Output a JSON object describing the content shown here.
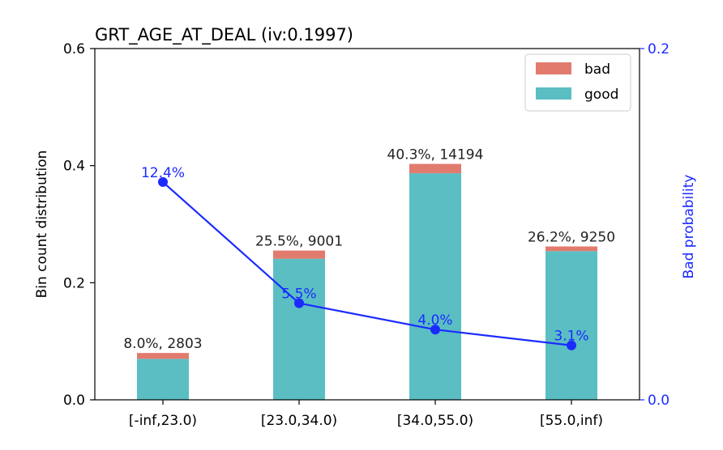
{
  "chart_data": {
    "type": "bar",
    "title": "GRT_AGE_AT_DEAL  (iv:0.1997)",
    "ylabel": "Bin count distribution",
    "y2label": "Bad probability",
    "ylim": [
      0,
      0.6
    ],
    "y2lim": [
      0,
      0.2
    ],
    "yticks": [
      "0.0",
      "0.2",
      "0.4",
      "0.6"
    ],
    "y2ticks": [
      "0.0",
      "0.2"
    ],
    "categories": [
      "[-inf,23.0)",
      "[23.0,34.0)",
      "[34.0,55.0)",
      "[55.0,inf)"
    ],
    "stacked": true,
    "series": [
      {
        "name": "good",
        "color": "#5bbec3",
        "values": [
          0.07,
          0.241,
          0.387,
          0.254
        ]
      },
      {
        "name": "bad",
        "color": "#e17b6e",
        "values": [
          0.01,
          0.014,
          0.016,
          0.008
        ]
      }
    ],
    "bar_labels": [
      "8.0%, 2803",
      "25.5%, 9001",
      "40.3%, 14194",
      "26.2%, 9250"
    ],
    "line": {
      "name": "Bad probability",
      "color": "#1b2bff",
      "values": [
        0.124,
        0.055,
        0.04,
        0.031
      ],
      "labels": [
        "12.4%",
        "5.5%",
        "4.0%",
        "3.1%"
      ]
    },
    "legend": {
      "position": "top-right",
      "entries": [
        "bad",
        "good"
      ]
    },
    "grid": false
  }
}
